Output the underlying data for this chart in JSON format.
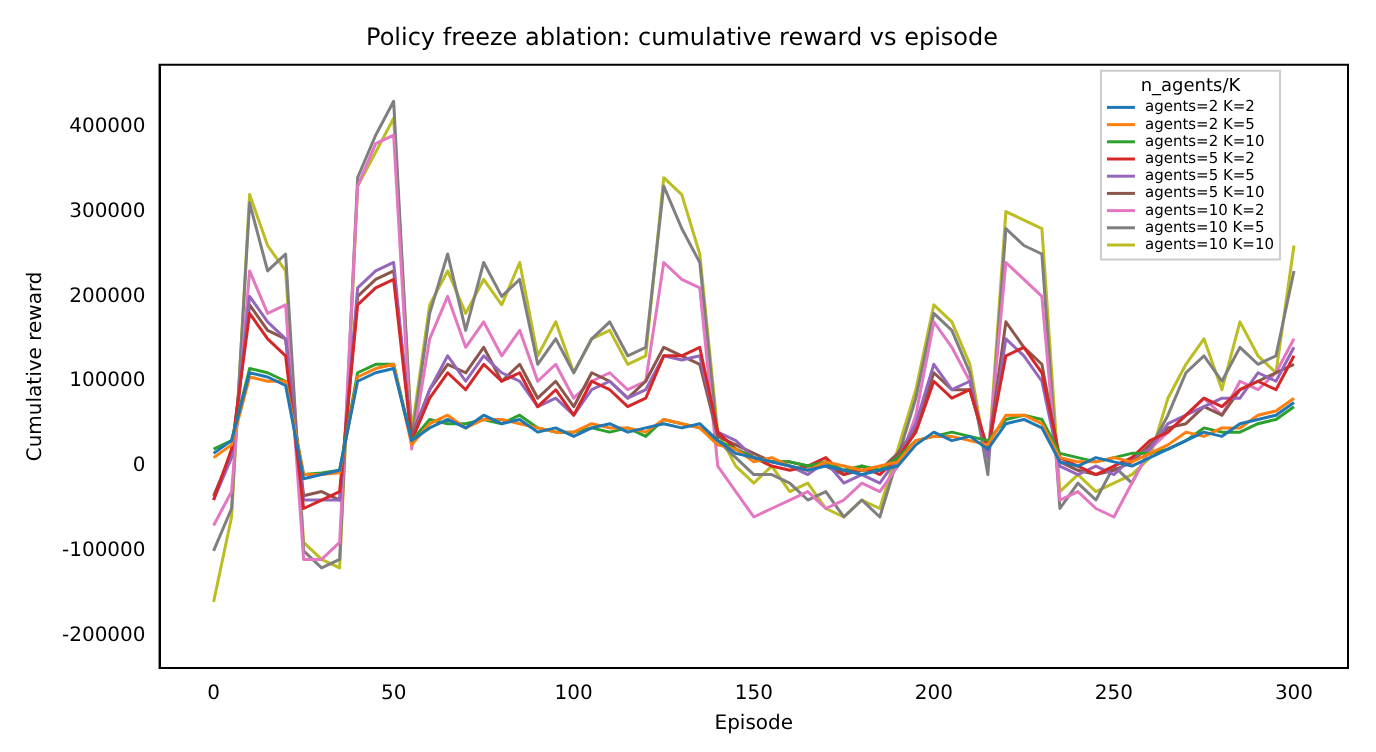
{
  "chart_data": {
    "type": "line",
    "title": "Policy freeze ablation: cumulative reward vs episode",
    "xlabel": "Episode",
    "ylabel": "Cumulative reward",
    "legend_title": "n_agents/K",
    "legend": "top right",
    "grid": false,
    "marker": "none",
    "line_style": "solid",
    "x": [
      0,
      5,
      10,
      15,
      20,
      25,
      30,
      35,
      40,
      45,
      50,
      55,
      60,
      65,
      70,
      75,
      80,
      85,
      90,
      95,
      100,
      105,
      110,
      115,
      120,
      125,
      130,
      135,
      140,
      145,
      150,
      155,
      160,
      165,
      170,
      175,
      180,
      185,
      190,
      195,
      200,
      205,
      210,
      215,
      220,
      225,
      230,
      235,
      240,
      245,
      250,
      255,
      260,
      265,
      270,
      275,
      280,
      285,
      290,
      295,
      300
    ],
    "xlim": [
      -15,
      315
    ],
    "xticks": [
      0,
      50,
      100,
      150,
      200,
      250,
      300
    ],
    "ylim": [
      -238000,
      473000
    ],
    "yticks": [
      -200000,
      -100000,
      0,
      100000,
      200000,
      300000,
      400000
    ],
    "series": [
      {
        "name": "agents=2 K=2",
        "color": "#1f77b4",
        "values": [
          15000,
          30000,
          110000,
          105000,
          95000,
          -15000,
          -10000,
          -5000,
          100000,
          110000,
          115000,
          30000,
          45000,
          55000,
          45000,
          60000,
          50000,
          55000,
          40000,
          45000,
          35000,
          45000,
          50000,
          40000,
          45000,
          50000,
          45000,
          50000,
          30000,
          15000,
          10000,
          5000,
          0,
          -5000,
          0,
          -5000,
          -10000,
          -5000,
          0,
          25000,
          40000,
          30000,
          35000,
          20000,
          50000,
          55000,
          45000,
          5000,
          0,
          10000,
          5000,
          0,
          10000,
          20000,
          30000,
          40000,
          35000,
          50000,
          55000,
          60000,
          75000
        ]
      },
      {
        "name": "agents=2 K=5",
        "color": "#ff7f0e",
        "values": [
          10000,
          25000,
          105000,
          100000,
          100000,
          -10000,
          -10000,
          -8000,
          105000,
          115000,
          120000,
          25000,
          50000,
          60000,
          45000,
          55000,
          55000,
          50000,
          45000,
          40000,
          40000,
          50000,
          45000,
          45000,
          40000,
          55000,
          50000,
          45000,
          25000,
          20000,
          5000,
          10000,
          0,
          -5000,
          5000,
          0,
          -5000,
          0,
          5000,
          30000,
          35000,
          35000,
          30000,
          25000,
          60000,
          60000,
          50000,
          10000,
          5000,
          5000,
          10000,
          5000,
          15000,
          25000,
          40000,
          35000,
          45000,
          45000,
          60000,
          65000,
          80000
        ]
      },
      {
        "name": "agents=2 K=10",
        "color": "#2ca02c",
        "values": [
          20000,
          30000,
          115000,
          110000,
          100000,
          -10000,
          -8000,
          -5000,
          110000,
          120000,
          120000,
          30000,
          55000,
          50000,
          50000,
          55000,
          50000,
          60000,
          45000,
          40000,
          40000,
          45000,
          40000,
          45000,
          35000,
          55000,
          50000,
          45000,
          30000,
          20000,
          10000,
          5000,
          5000,
          0,
          5000,
          -5000,
          0,
          -5000,
          10000,
          30000,
          35000,
          40000,
          35000,
          30000,
          55000,
          60000,
          55000,
          15000,
          10000,
          5000,
          10000,
          15000,
          15000,
          20000,
          30000,
          45000,
          40000,
          40000,
          50000,
          55000,
          70000
        ]
      },
      {
        "name": "agents=5 K=2",
        "color": "#d62728",
        "values": [
          -40000,
          20000,
          180000,
          150000,
          130000,
          -50000,
          -40000,
          -30000,
          190000,
          210000,
          220000,
          30000,
          80000,
          110000,
          90000,
          120000,
          100000,
          110000,
          70000,
          90000,
          60000,
          100000,
          90000,
          70000,
          80000,
          130000,
          130000,
          140000,
          40000,
          20000,
          10000,
          0,
          -5000,
          0,
          10000,
          -10000,
          0,
          -10000,
          10000,
          40000,
          100000,
          80000,
          90000,
          20000,
          130000,
          140000,
          110000,
          10000,
          0,
          -10000,
          0,
          10000,
          30000,
          40000,
          60000,
          80000,
          70000,
          90000,
          100000,
          90000,
          130000
        ]
      },
      {
        "name": "agents=5 K=5",
        "color": "#9467bd",
        "values": [
          -40000,
          10000,
          200000,
          170000,
          150000,
          -40000,
          -40000,
          -40000,
          210000,
          230000,
          240000,
          30000,
          90000,
          130000,
          100000,
          130000,
          110000,
          100000,
          70000,
          80000,
          60000,
          90000,
          100000,
          80000,
          90000,
          130000,
          125000,
          130000,
          40000,
          30000,
          10000,
          5000,
          0,
          -10000,
          5000,
          -20000,
          -10000,
          -20000,
          10000,
          50000,
          120000,
          90000,
          100000,
          10000,
          150000,
          130000,
          100000,
          0,
          -10000,
          0,
          -10000,
          10000,
          20000,
          50000,
          60000,
          70000,
          80000,
          80000,
          110000,
          100000,
          140000
        ]
      },
      {
        "name": "agents=5 K=10",
        "color": "#8c564b",
        "values": [
          -35000,
          15000,
          190000,
          160000,
          150000,
          -35000,
          -30000,
          -40000,
          200000,
          220000,
          230000,
          35000,
          90000,
          120000,
          110000,
          140000,
          100000,
          120000,
          80000,
          100000,
          70000,
          110000,
          100000,
          80000,
          100000,
          140000,
          130000,
          120000,
          35000,
          25000,
          15000,
          5000,
          5000,
          0,
          0,
          -10000,
          -5000,
          -5000,
          15000,
          45000,
          110000,
          90000,
          90000,
          15000,
          170000,
          140000,
          120000,
          5000,
          -5000,
          -10000,
          -5000,
          5000,
          25000,
          45000,
          50000,
          70000,
          60000,
          90000,
          100000,
          110000,
          120000
        ]
      },
      {
        "name": "agents=10 K=2",
        "color": "#e377c2",
        "values": [
          -70000,
          -30000,
          230000,
          180000,
          190000,
          -110000,
          -110000,
          -90000,
          330000,
          380000,
          390000,
          20000,
          150000,
          200000,
          140000,
          170000,
          130000,
          160000,
          100000,
          120000,
          80000,
          100000,
          110000,
          90000,
          100000,
          240000,
          220000,
          210000,
          0,
          -30000,
          -60000,
          -50000,
          -40000,
          -30000,
          -50000,
          -40000,
          -20000,
          -30000,
          0,
          60000,
          170000,
          140000,
          100000,
          10000,
          240000,
          220000,
          200000,
          -40000,
          -30000,
          -50000,
          -60000,
          -20000,
          20000,
          40000,
          60000,
          80000,
          60000,
          100000,
          90000,
          110000,
          150000
        ]
      },
      {
        "name": "agents=10 K=5",
        "color": "#7f7f7f",
        "values": [
          -100000,
          -50000,
          310000,
          230000,
          250000,
          -100000,
          -120000,
          -110000,
          340000,
          390000,
          430000,
          30000,
          180000,
          250000,
          160000,
          240000,
          200000,
          220000,
          120000,
          150000,
          110000,
          150000,
          170000,
          130000,
          140000,
          330000,
          280000,
          240000,
          30000,
          10000,
          -10000,
          -10000,
          -20000,
          -40000,
          -30000,
          -60000,
          -40000,
          -60000,
          10000,
          80000,
          180000,
          160000,
          110000,
          -10000,
          280000,
          260000,
          250000,
          -50000,
          -20000,
          -40000,
          0,
          -20000,
          20000,
          60000,
          110000,
          130000,
          100000,
          140000,
          120000,
          130000,
          230000
        ]
      },
      {
        "name": "agents=10 K=10",
        "color": "#bcbd22",
        "values": [
          -160000,
          -60000,
          320000,
          260000,
          230000,
          -90000,
          -110000,
          -120000,
          330000,
          370000,
          410000,
          40000,
          190000,
          230000,
          180000,
          220000,
          190000,
          240000,
          130000,
          170000,
          110000,
          150000,
          160000,
          120000,
          130000,
          340000,
          320000,
          250000,
          40000,
          0,
          -20000,
          0,
          -30000,
          -20000,
          -50000,
          -60000,
          -40000,
          -50000,
          20000,
          90000,
          190000,
          170000,
          120000,
          0,
          300000,
          290000,
          280000,
          -30000,
          -10000,
          -30000,
          -20000,
          -10000,
          10000,
          80000,
          120000,
          150000,
          90000,
          170000,
          130000,
          110000,
          260000
        ]
      }
    ]
  }
}
